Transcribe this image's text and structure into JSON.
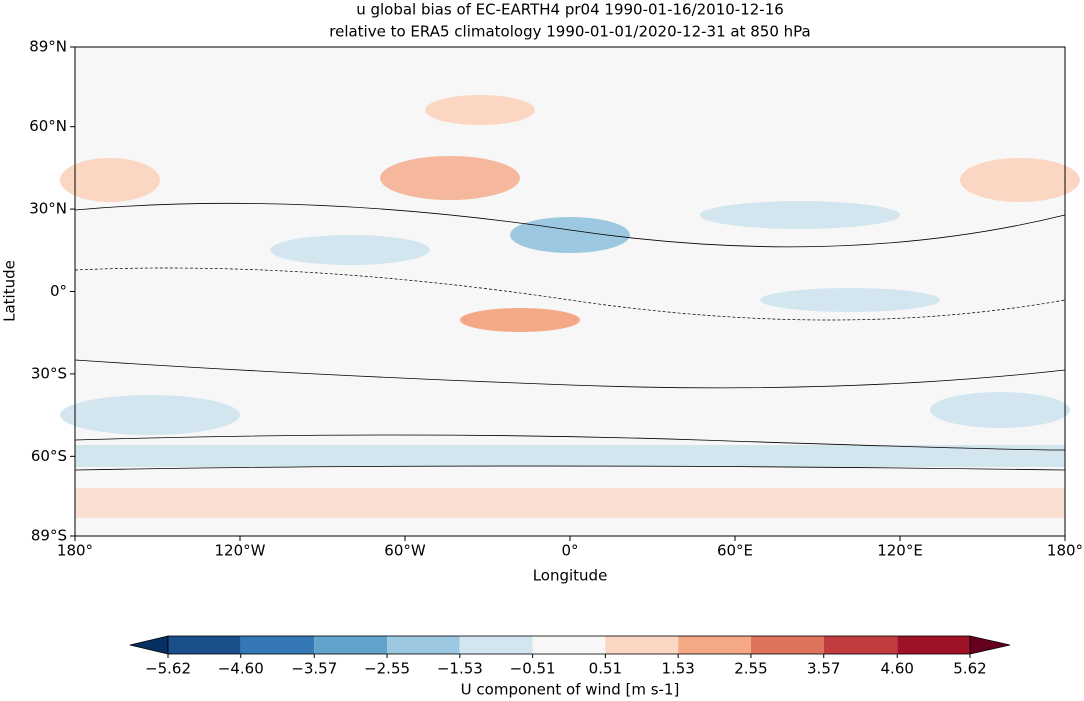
{
  "chart_data": {
    "type": "map",
    "title": [
      "u global bias of EC-EARTH4 pr04 1990-01-16/2010-12-16",
      "relative to ERA5 climatology 1990-01-01/2020-12-31 at 850 hPa"
    ],
    "xlabel": "Longitude",
    "ylabel": "Latitude",
    "xlim": [
      -180,
      180
    ],
    "ylim": [
      -89,
      89
    ],
    "xticks": [
      {
        "value": -180,
        "label": "180°"
      },
      {
        "value": -120,
        "label": "120°W"
      },
      {
        "value": -60,
        "label": "60°W"
      },
      {
        "value": 0,
        "label": "0°"
      },
      {
        "value": 60,
        "label": "60°E"
      },
      {
        "value": 120,
        "label": "120°E"
      },
      {
        "value": 180,
        "label": "180°"
      }
    ],
    "yticks": [
      {
        "value": 89,
        "label": "89°N"
      },
      {
        "value": 60,
        "label": "60°N"
      },
      {
        "value": 30,
        "label": "30°N"
      },
      {
        "value": 0,
        "label": "0°"
      },
      {
        "value": -30,
        "label": "30°S"
      },
      {
        "value": -60,
        "label": "60°S"
      },
      {
        "value": -89,
        "label": "89°S"
      }
    ],
    "colorbar": {
      "label": "U component of wind [m s-1]",
      "levels": [
        {
          "value": -5.62,
          "label": "−5.62"
        },
        {
          "value": -4.6,
          "label": "−4.60"
        },
        {
          "value": -3.57,
          "label": "−3.57"
        },
        {
          "value": -2.55,
          "label": "−2.55"
        },
        {
          "value": -1.53,
          "label": "−1.53"
        },
        {
          "value": -0.51,
          "label": "−0.51"
        },
        {
          "value": 0.51,
          "label": "0.51"
        },
        {
          "value": 1.53,
          "label": "1.53"
        },
        {
          "value": 2.55,
          "label": "2.55"
        },
        {
          "value": 3.57,
          "label": "3.57"
        },
        {
          "value": 4.6,
          "label": "4.60"
        },
        {
          "value": 5.62,
          "label": "5.62"
        }
      ],
      "colors": [
        "#1b4f8c",
        "#3479b6",
        "#62a3cc",
        "#9cc9e1",
        "#d3e6f0",
        "#f7f7f7",
        "#fbd6c3",
        "#f4a886",
        "#de735c",
        "#c13c3c",
        "#9f1127"
      ],
      "extend_colors": [
        "#053061",
        "#67001f"
      ]
    }
  }
}
